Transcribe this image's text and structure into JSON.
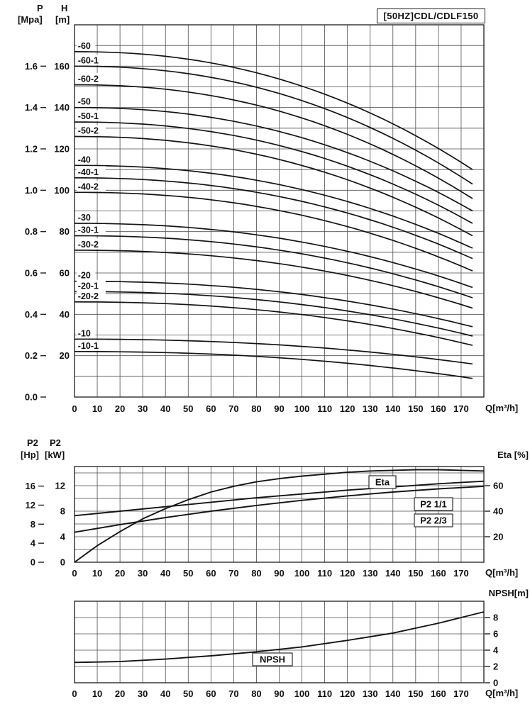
{
  "chart_data": [
    {
      "id": "head",
      "type": "line",
      "title": "[50HZ]CDL/CDLF150",
      "x": {
        "label": "Q[m³/h]",
        "min": 0,
        "max": 180,
        "ticks": [
          0,
          10,
          20,
          30,
          40,
          50,
          60,
          70,
          80,
          90,
          100,
          110,
          120,
          130,
          140,
          150,
          160,
          170
        ]
      },
      "y_h": {
        "name": "H",
        "unit": "[m]",
        "min": 0,
        "max": 180,
        "ticks": [
          20,
          40,
          60,
          80,
          100,
          120,
          140,
          160
        ]
      },
      "y_p": {
        "name": "P",
        "unit": "[Mpa]",
        "m_per_unit": 100,
        "ticks": [
          0,
          0.2,
          0.4,
          0.6,
          0.8,
          1.0,
          1.2,
          1.4,
          1.6
        ],
        "tick_labels": [
          "0.0",
          "0.2",
          "0.4",
          "0.6",
          "0.8",
          "1.0",
          "1.2",
          "1.4",
          "1.6"
        ]
      },
      "grid": {
        "x_step": 10,
        "y_step": 10
      },
      "q_end": 175,
      "droop_exponent": 2.2,
      "series": [
        {
          "label": "-60",
          "h0": 167,
          "h_end": 110
        },
        {
          "label": "-60-1",
          "h0": 160,
          "h_end": 103
        },
        {
          "label": "-60-2",
          "h0": 151,
          "h_end": 96
        },
        {
          "label": "-50",
          "h0": 140,
          "h_end": 90
        },
        {
          "label": "-50-1",
          "h0": 133,
          "h_end": 84
        },
        {
          "label": "-50-2",
          "h0": 126,
          "h_end": 78
        },
        {
          "label": "-40",
          "h0": 112,
          "h_end": 72
        },
        {
          "label": "-40-1",
          "h0": 106,
          "h_end": 67
        },
        {
          "label": "-40-2",
          "h0": 99,
          "h_end": 61
        },
        {
          "label": "-30",
          "h0": 84,
          "h_end": 53
        },
        {
          "label": "-30-1",
          "h0": 78,
          "h_end": 48
        },
        {
          "label": "-30-2",
          "h0": 71,
          "h_end": 43
        },
        {
          "label": "-20",
          "h0": 56,
          "h_end": 34
        },
        {
          "label": "-20-1",
          "h0": 51,
          "h_end": 29.5
        },
        {
          "label": "-20-2",
          "h0": 46,
          "h_end": 25
        },
        {
          "label": "-10",
          "h0": 28,
          "h_end": 16
        },
        {
          "label": "-10-1",
          "h0": 22,
          "h_end": 9
        }
      ]
    },
    {
      "id": "power_eta",
      "type": "line",
      "x": {
        "label": "Q[m³/h]",
        "min": 0,
        "max": 180,
        "ticks": [
          0,
          10,
          20,
          30,
          40,
          50,
          60,
          70,
          80,
          90,
          100,
          110,
          120,
          130,
          140,
          150,
          160,
          170
        ]
      },
      "y_kw": {
        "name": "P2",
        "unit": "[kW]",
        "min": 0,
        "max": 15,
        "ticks": [
          0,
          4,
          8,
          12
        ]
      },
      "y_hp": {
        "name": "P2",
        "unit": "[Hp]",
        "ticks": [
          0,
          4,
          8,
          12,
          16
        ],
        "kw_per_hp": 0.7457
      },
      "y_eta": {
        "label": "Eta [%]",
        "ticks": [
          20,
          40,
          60
        ],
        "kw_per_pct": 0.2
      },
      "grid": {
        "x_step": 10,
        "y_step": 2
      },
      "series": [
        {
          "label": "Eta",
          "axis": "eta",
          "points": [
            [
              0,
              0
            ],
            [
              10,
              13
            ],
            [
              20,
              24
            ],
            [
              30,
              34
            ],
            [
              40,
              42
            ],
            [
              50,
              49
            ],
            [
              60,
              55
            ],
            [
              70,
              59.5
            ],
            [
              80,
              63
            ],
            [
              90,
              65.5
            ],
            [
              100,
              67.5
            ],
            [
              110,
              69
            ],
            [
              120,
              70.5
            ],
            [
              130,
              71.5
            ],
            [
              140,
              72
            ],
            [
              150,
              72.5
            ],
            [
              160,
              72.5
            ],
            [
              170,
              72
            ],
            [
              180,
              71.5
            ]
          ]
        },
        {
          "label": "P2 1/1",
          "axis": "kw",
          "points": [
            [
              0,
              7.3
            ],
            [
              20,
              8.0
            ],
            [
              40,
              8.7
            ],
            [
              60,
              9.4
            ],
            [
              80,
              10.1
            ],
            [
              100,
              10.7
            ],
            [
              120,
              11.3
            ],
            [
              140,
              11.8
            ],
            [
              160,
              12.3
            ],
            [
              180,
              12.7
            ]
          ]
        },
        {
          "label": "P2 2/3",
          "axis": "kw",
          "points": [
            [
              0,
              4.7
            ],
            [
              20,
              5.9
            ],
            [
              40,
              7.0
            ],
            [
              60,
              8.0
            ],
            [
              80,
              8.9
            ],
            [
              100,
              9.7
            ],
            [
              120,
              10.4
            ],
            [
              140,
              11.0
            ],
            [
              160,
              11.5
            ],
            [
              180,
              11.9
            ]
          ]
        }
      ]
    },
    {
      "id": "npsh",
      "type": "line",
      "x": {
        "label": "Q[m³/h]",
        "min": 0,
        "max": 180,
        "ticks": [
          0,
          10,
          20,
          30,
          40,
          50,
          60,
          70,
          80,
          90,
          100,
          110,
          120,
          130,
          140,
          150,
          160,
          170
        ]
      },
      "y": {
        "label": "NPSH[m]",
        "min": 0,
        "max": 10,
        "ticks": [
          0,
          2,
          4,
          6,
          8
        ]
      },
      "grid": {
        "x_step": 10,
        "y_step": 2
      },
      "series": [
        {
          "label": "NPSH",
          "points": [
            [
              0,
              2.5
            ],
            [
              20,
              2.6
            ],
            [
              40,
              2.9
            ],
            [
              60,
              3.3
            ],
            [
              80,
              3.8
            ],
            [
              100,
              4.4
            ],
            [
              120,
              5.2
            ],
            [
              140,
              6.1
            ],
            [
              160,
              7.3
            ],
            [
              170,
              8.0
            ],
            [
              180,
              8.7
            ]
          ]
        }
      ]
    }
  ]
}
